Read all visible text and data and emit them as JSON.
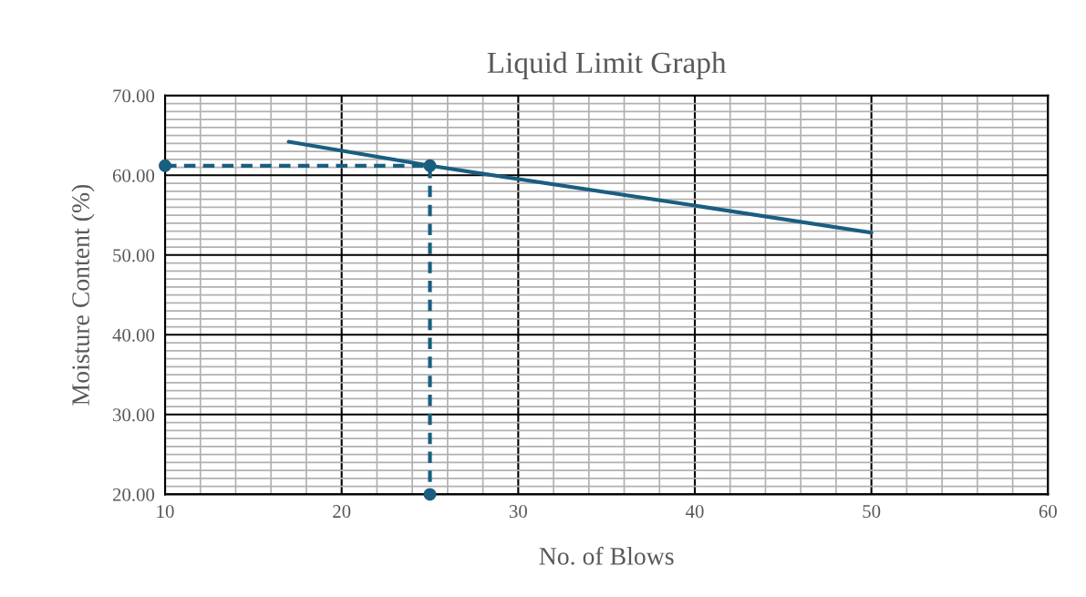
{
  "chart_data": {
    "type": "line",
    "title": "Liquid Limit Graph",
    "xlabel": "No. of Blows",
    "ylabel": "Moisture Content (%)",
    "series": [
      {
        "color": "#1a5e80",
        "x": [
          17,
          25,
          40,
          50
        ],
        "values": [
          64.2,
          61.2,
          56.2,
          52.8
        ],
        "marker": "none",
        "line_style": "solid"
      },
      {
        "color": "#1a5e80",
        "x": [
          10,
          25,
          25
        ],
        "values": [
          61.2,
          61.2,
          20
        ],
        "marker": "circle",
        "line_style": "dashed"
      }
    ],
    "xlim": [
      10,
      60
    ],
    "xticks": [
      10,
      20,
      30,
      40,
      50,
      60
    ],
    "ylim": [
      20,
      70
    ],
    "yticks": [
      {
        "value": 20,
        "label": "20.00"
      },
      {
        "value": 30,
        "label": "30.00"
      },
      {
        "value": 40,
        "label": "40.00"
      },
      {
        "value": 50,
        "label": "50.00"
      },
      {
        "value": 60,
        "label": "60.00"
      },
      {
        "value": 70,
        "label": "70.00"
      }
    ],
    "grid": true,
    "legend": false
  }
}
